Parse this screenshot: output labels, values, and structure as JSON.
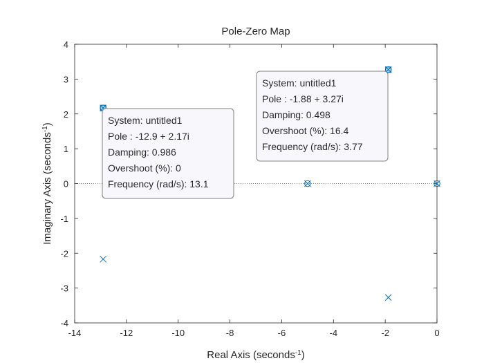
{
  "chart_data": {
    "type": "scatter",
    "title": "Pole-Zero Map",
    "xlabel": {
      "base": "Real Axis (seconds",
      "sup": "-1",
      "close": ")"
    },
    "ylabel": {
      "base": "Imaginary Axis (seconds",
      "sup": "-1",
      "close": ")"
    },
    "xlim": [
      -14,
      0
    ],
    "ylim": [
      -4,
      4
    ],
    "xticks": [
      -14,
      -12,
      -10,
      -8,
      -6,
      -4,
      -2,
      0
    ],
    "yticks": [
      -4,
      -3,
      -2,
      -1,
      0,
      1,
      2,
      3,
      4
    ],
    "grid": false,
    "zero_line": true,
    "colors": {
      "marker": "#0072BD",
      "axis": "#262626",
      "tip_border": "#7f7f7f",
      "tip_fill": "#f8f8fc"
    },
    "poles": [
      {
        "x": -12.9,
        "y": 2.17
      },
      {
        "x": -12.9,
        "y": -2.17
      },
      {
        "x": -1.88,
        "y": 3.27
      },
      {
        "x": -1.88,
        "y": -3.27
      },
      {
        "x": -5.0,
        "y": 0
      },
      {
        "x": 0,
        "y": 0
      }
    ],
    "zeros": [
      {
        "x": -12.9,
        "y": 2.17
      },
      {
        "x": -1.88,
        "y": 3.27
      },
      {
        "x": -5.0,
        "y": 0
      },
      {
        "x": 0,
        "y": 0
      }
    ],
    "datatips": [
      {
        "x": -12.9,
        "y": 2.17,
        "lines": [
          "System: untitled1",
          "Pole : -12.9 + 2.17i",
          "Damping: 0.986",
          "Overshoot (%): 0",
          "Frequency (rad/s): 13.1"
        ]
      },
      {
        "x": -1.88,
        "y": 3.27,
        "lines": [
          "System: untitled1",
          "Pole : -1.88 + 3.27i",
          "Damping: 0.498",
          "Overshoot (%): 16.4",
          "Frequency (rad/s): 3.77"
        ]
      }
    ]
  }
}
